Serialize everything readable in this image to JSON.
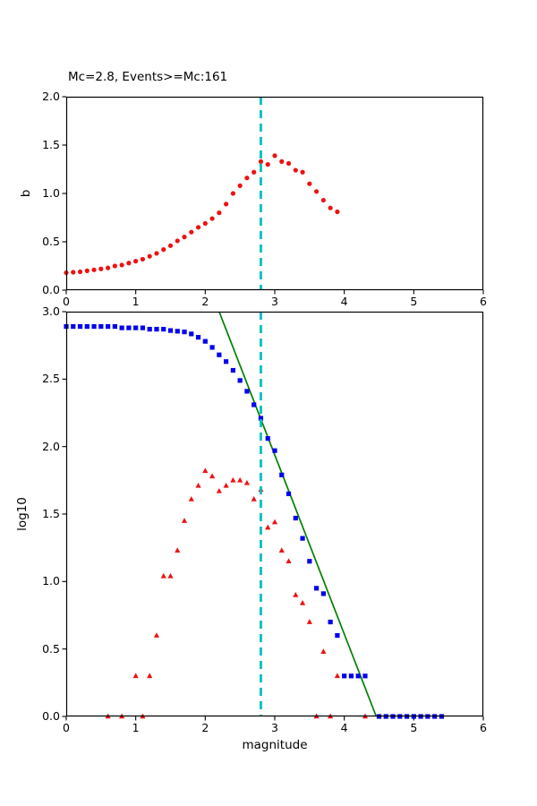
{
  "figure": {
    "kind": "matplotlib-style earthquake frequency-magnitude figure",
    "background": "#ffffff"
  },
  "colors": {
    "marker_red": "#ee1111",
    "marker_blue": "#0000ee",
    "fit_green": "#008000",
    "cutoff_cyan": "#00bfbf",
    "axis_black": "#000000"
  },
  "chart_data": [
    {
      "id": "b_value_plot",
      "type": "scatter",
      "title": "Mc=2.8, Events>=Mc:161",
      "ylabel": "b",
      "xlim": [
        0,
        6
      ],
      "ylim": [
        0,
        2
      ],
      "xticks": [
        "0",
        "1",
        "2",
        "3",
        "4",
        "5",
        "6"
      ],
      "yticks": [
        "0.0",
        "0.5",
        "1.0",
        "1.5",
        "2.0"
      ],
      "grid": false,
      "legend": "none",
      "vline": {
        "x": 2.8,
        "color": "#00bfbf",
        "style": "dashed",
        "label": "Mc cutoff"
      },
      "series": [
        {
          "name": "b-value-vs-cutoff",
          "marker": "circle",
          "color": "#ee1111",
          "x": [
            0.0,
            0.1,
            0.2,
            0.3,
            0.4,
            0.5,
            0.6,
            0.7,
            0.8,
            0.9,
            1.0,
            1.1,
            1.2,
            1.3,
            1.4,
            1.5,
            1.6,
            1.7,
            1.8,
            1.9,
            2.0,
            2.1,
            2.2,
            2.3,
            2.4,
            2.5,
            2.6,
            2.7,
            2.8,
            2.9,
            3.0,
            3.1,
            3.2,
            3.3,
            3.4,
            3.5,
            3.6,
            3.7,
            3.8,
            3.9
          ],
          "y": [
            0.18,
            0.185,
            0.19,
            0.2,
            0.21,
            0.22,
            0.23,
            0.25,
            0.26,
            0.28,
            0.3,
            0.32,
            0.35,
            0.38,
            0.42,
            0.46,
            0.51,
            0.55,
            0.6,
            0.65,
            0.69,
            0.74,
            0.8,
            0.89,
            1.0,
            1.08,
            1.16,
            1.22,
            1.33,
            1.3,
            1.39,
            1.33,
            1.31,
            1.24,
            1.22,
            1.1,
            1.02,
            0.93,
            0.85,
            0.81
          ]
        }
      ]
    },
    {
      "id": "fmd_plot",
      "type": "scatter",
      "title": "",
      "ylabel": "log10",
      "xlabel": "magnitude",
      "xlim": [
        0,
        6
      ],
      "ylim": [
        0,
        3
      ],
      "xticks": [
        "0",
        "1",
        "2",
        "3",
        "4",
        "5",
        "6"
      ],
      "yticks": [
        "0.0",
        "0.5",
        "1.0",
        "1.5",
        "2.0",
        "2.5",
        "3.0"
      ],
      "grid": false,
      "legend": "none",
      "vline": {
        "x": 2.8,
        "color": "#00bfbf",
        "style": "dashed",
        "label": "Mc cutoff"
      },
      "fit_line": {
        "name": "gutenberg-richter-fit",
        "color": "#008000",
        "x1": 2.2,
        "y1": 3.0,
        "x2": 4.46,
        "y2": 0.0
      },
      "series": [
        {
          "name": "cumulative-counts",
          "marker": "square",
          "color": "#0000ee",
          "x": [
            0.0,
            0.1,
            0.2,
            0.3,
            0.4,
            0.5,
            0.6,
            0.7,
            0.8,
            0.9,
            1.0,
            1.1,
            1.2,
            1.3,
            1.4,
            1.5,
            1.6,
            1.7,
            1.8,
            1.9,
            2.0,
            2.1,
            2.2,
            2.3,
            2.4,
            2.5,
            2.6,
            2.7,
            2.8,
            2.9,
            3.0,
            3.1,
            3.2,
            3.3,
            3.4,
            3.5,
            3.6,
            3.7,
            3.8,
            3.9,
            4.0,
            4.1,
            4.2,
            4.3,
            4.5,
            4.6,
            4.7,
            4.8,
            4.9,
            5.0,
            5.1,
            5.2,
            5.3,
            5.4
          ],
          "y": [
            2.89,
            2.89,
            2.89,
            2.89,
            2.89,
            2.89,
            2.89,
            2.89,
            2.88,
            2.88,
            2.88,
            2.88,
            2.87,
            2.87,
            2.87,
            2.86,
            2.855,
            2.85,
            2.835,
            2.81,
            2.78,
            2.735,
            2.68,
            2.63,
            2.565,
            2.49,
            2.41,
            2.31,
            2.21,
            2.06,
            1.97,
            1.79,
            1.65,
            1.47,
            1.32,
            1.15,
            0.95,
            0.91,
            0.7,
            0.6,
            0.3,
            0.3,
            0.3,
            0.3,
            0.0,
            0.0,
            0.0,
            0.0,
            0.0,
            0.0,
            0.0,
            0.0,
            0.0,
            0.0
          ]
        },
        {
          "name": "noncumulative-counts",
          "marker": "triangle",
          "color": "#ee1111",
          "x": [
            0.6,
            0.8,
            1.0,
            1.1,
            1.2,
            1.3,
            1.4,
            1.5,
            1.6,
            1.7,
            1.8,
            1.9,
            2.0,
            2.1,
            2.2,
            2.3,
            2.4,
            2.5,
            2.6,
            2.7,
            2.8,
            2.9,
            3.0,
            3.1,
            3.2,
            3.3,
            3.4,
            3.5,
            3.6,
            3.7,
            3.8,
            3.9,
            4.3
          ],
          "y": [
            0.0,
            0.0,
            0.3,
            0.0,
            0.3,
            0.6,
            1.04,
            1.04,
            1.23,
            1.45,
            1.61,
            1.71,
            1.82,
            1.78,
            1.67,
            1.71,
            1.75,
            1.75,
            1.73,
            1.61,
            1.68,
            1.4,
            1.44,
            1.23,
            1.15,
            0.9,
            0.84,
            0.7,
            0.0,
            0.48,
            0.0,
            0.3,
            0.0
          ]
        }
      ]
    }
  ]
}
